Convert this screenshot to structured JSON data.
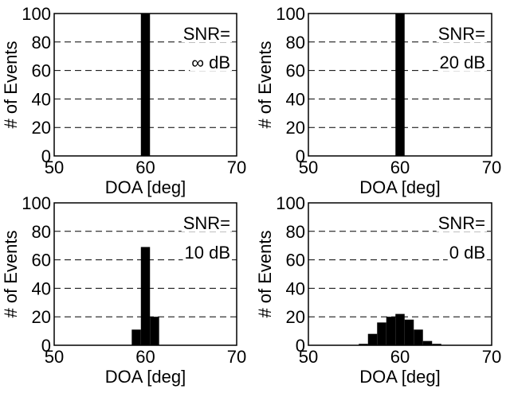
{
  "chart_data": [
    {
      "type": "bar",
      "panel": "top-left",
      "xlabel": "DOA [deg]",
      "ylabel": "# of Events",
      "xlim": [
        50,
        70
      ],
      "ylim": [
        0,
        100
      ],
      "xticks": [
        "50",
        "60",
        "70"
      ],
      "yticks": [
        "0",
        "20",
        "40",
        "60",
        "80",
        "100"
      ],
      "grid": "horizontal dashed at 20, 40, 60, 80",
      "annotation": [
        "SNR=",
        "∞ dB"
      ],
      "bars": [
        {
          "x": 60,
          "width": 1.0,
          "value": 100
        }
      ]
    },
    {
      "type": "bar",
      "panel": "top-right",
      "xlabel": "DOA [deg]",
      "ylabel": "# of Events",
      "xlim": [
        50,
        70
      ],
      "ylim": [
        0,
        100
      ],
      "xticks": [
        "50",
        "60",
        "70"
      ],
      "yticks": [
        "0",
        "20",
        "40",
        "60",
        "80",
        "100"
      ],
      "grid": "horizontal dashed at 20, 40, 60, 80",
      "annotation": [
        "SNR=",
        "20 dB"
      ],
      "bars": [
        {
          "x": 60,
          "width": 1.0,
          "value": 100
        }
      ]
    },
    {
      "type": "bar",
      "panel": "bottom-left",
      "xlabel": "DOA [deg]",
      "ylabel": "# of Events",
      "xlim": [
        50,
        70
      ],
      "ylim": [
        0,
        100
      ],
      "xticks": [
        "50",
        "60",
        "70"
      ],
      "yticks": [
        "0",
        "20",
        "40",
        "60",
        "80",
        "100"
      ],
      "grid": "horizontal dashed at 20, 40, 60, 80",
      "annotation": [
        "SNR=",
        "10 dB"
      ],
      "bars": [
        {
          "x": 59,
          "width": 1.0,
          "value": 11
        },
        {
          "x": 60,
          "width": 1.0,
          "value": 69
        },
        {
          "x": 61,
          "width": 1.0,
          "value": 20
        }
      ]
    },
    {
      "type": "bar",
      "panel": "bottom-right",
      "xlabel": "DOA [deg]",
      "ylabel": "# of Events",
      "xlim": [
        50,
        70
      ],
      "ylim": [
        0,
        100
      ],
      "xticks": [
        "50",
        "60",
        "70"
      ],
      "yticks": [
        "0",
        "20",
        "40",
        "60",
        "80",
        "100"
      ],
      "grid": "horizontal dashed at 20, 40, 60, 80",
      "annotation": [
        "SNR=",
        "0 dB"
      ],
      "bars": [
        {
          "x": 56,
          "width": 1.0,
          "value": 1
        },
        {
          "x": 57,
          "width": 1.0,
          "value": 8
        },
        {
          "x": 58,
          "width": 1.0,
          "value": 16
        },
        {
          "x": 59,
          "width": 1.0,
          "value": 20
        },
        {
          "x": 60,
          "width": 1.0,
          "value": 22
        },
        {
          "x": 61,
          "width": 1.0,
          "value": 18
        },
        {
          "x": 62,
          "width": 1.0,
          "value": 11
        },
        {
          "x": 63,
          "width": 1.0,
          "value": 3
        },
        {
          "x": 64,
          "width": 1.0,
          "value": 1
        }
      ]
    }
  ]
}
